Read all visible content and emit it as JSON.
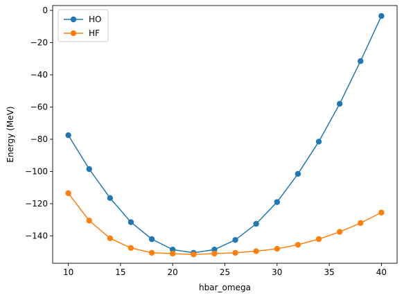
{
  "chart_data": {
    "type": "line",
    "title": "",
    "xlabel": "hbar_omega",
    "ylabel": "Energy (MeV)",
    "xlim": [
      8.5,
      41.5
    ],
    "ylim": [
      -157,
      3
    ],
    "xticks": [
      10,
      15,
      20,
      25,
      30,
      35,
      40
    ],
    "yticks": [
      0,
      -20,
      -40,
      -60,
      -80,
      -100,
      -120,
      -140
    ],
    "grid": false,
    "legend_position": "top-left",
    "x": [
      10,
      12,
      14,
      16,
      18,
      20,
      22,
      24,
      26,
      28,
      30,
      32,
      34,
      36,
      38,
      40
    ],
    "series": [
      {
        "name": "HO",
        "color": "#1f77b4",
        "marker": "circle",
        "values": [
          -77.5,
          -98.5,
          -116.5,
          -131.5,
          -142,
          -148.5,
          -150.5,
          -148.5,
          -142.5,
          -132.5,
          -119,
          -101.5,
          -81.5,
          -58,
          -31.5,
          -3.5
        ]
      },
      {
        "name": "HF",
        "color": "#ff7f0e",
        "marker": "circle",
        "values": [
          -113.5,
          -130.5,
          -141.5,
          -147.5,
          -150.5,
          -151,
          -151.5,
          -151,
          -150.5,
          -149.5,
          -148,
          -145.5,
          -142,
          -137.5,
          -132,
          -125.5
        ]
      }
    ]
  }
}
